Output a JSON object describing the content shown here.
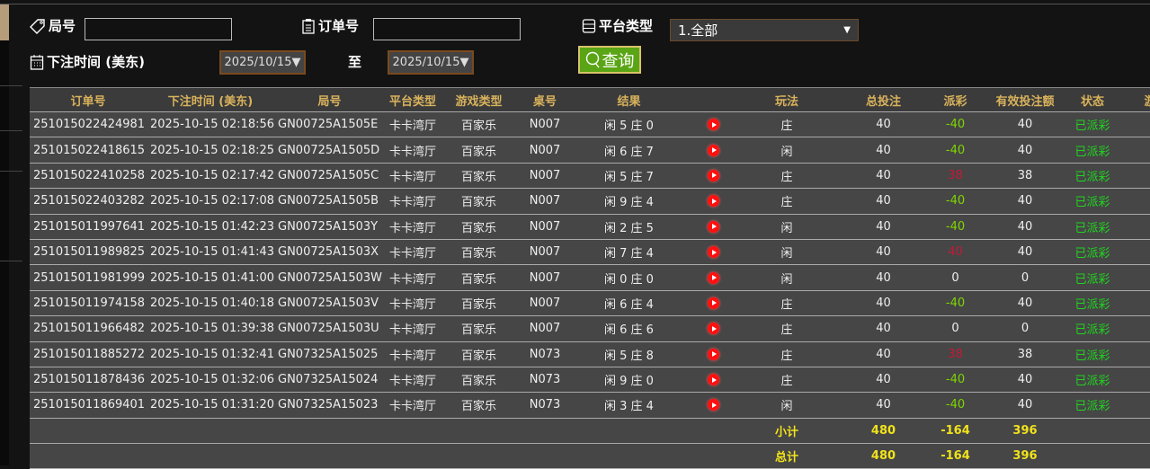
{
  "filters": {
    "round_label": "局号",
    "round_value": "",
    "order_label": "订单号",
    "order_value": "",
    "platform_label": "平台类型",
    "platform_value": "1.全部",
    "time_label": "下注时间 (美东)",
    "date_from": "2025/10/15▼",
    "to_label": "至",
    "date_to": "2025/10/15▼",
    "search_label": "查询"
  },
  "table": {
    "headers": [
      "订单号",
      "下注时间 (美东)",
      "局号",
      "平台类型",
      "游戏类型",
      "桌号",
      "结果",
      "",
      "玩法",
      "总投注",
      "派彩",
      "有效投注额",
      "状态",
      "游"
    ],
    "rows": [
      [
        "251015022424981",
        "2025-10-15 02:18:56",
        "GN00725A1505E",
        "卡卡湾厅",
        "百家乐",
        "N007",
        "闲 5 庄 0",
        "庄",
        "40",
        "-40",
        "40",
        "已派彩"
      ],
      [
        "251015022418615",
        "2025-10-15 02:18:25",
        "GN00725A1505D",
        "卡卡湾厅",
        "百家乐",
        "N007",
        "闲 6 庄 7",
        "闲",
        "40",
        "-40",
        "40",
        "已派彩"
      ],
      [
        "251015022410258",
        "2025-10-15 02:17:42",
        "GN00725A1505C",
        "卡卡湾厅",
        "百家乐",
        "N007",
        "闲 5 庄 7",
        "庄",
        "40",
        "38",
        "38",
        "已派彩"
      ],
      [
        "251015022403282",
        "2025-10-15 02:17:08",
        "GN00725A1505B",
        "卡卡湾厅",
        "百家乐",
        "N007",
        "闲 9 庄 4",
        "庄",
        "40",
        "-40",
        "40",
        "已派彩"
      ],
      [
        "251015011997641",
        "2025-10-15 01:42:23",
        "GN00725A1503Y",
        "卡卡湾厅",
        "百家乐",
        "N007",
        "闲 2 庄 5",
        "闲",
        "40",
        "-40",
        "40",
        "已派彩"
      ],
      [
        "251015011989825",
        "2025-10-15 01:41:43",
        "GN00725A1503X",
        "卡卡湾厅",
        "百家乐",
        "N007",
        "闲 7 庄 4",
        "闲",
        "40",
        "40",
        "40",
        "已派彩"
      ],
      [
        "251015011981999",
        "2025-10-15 01:41:00",
        "GN00725A1503W",
        "卡卡湾厅",
        "百家乐",
        "N007",
        "闲 0 庄 0",
        "闲",
        "40",
        "0",
        "0",
        "已派彩"
      ],
      [
        "251015011974158",
        "2025-10-15 01:40:18",
        "GN00725A1503V",
        "卡卡湾厅",
        "百家乐",
        "N007",
        "闲 6 庄 4",
        "庄",
        "40",
        "-40",
        "40",
        "已派彩"
      ],
      [
        "251015011966482",
        "2025-10-15 01:39:38",
        "GN00725A1503U",
        "卡卡湾厅",
        "百家乐",
        "N007",
        "闲 6 庄 6",
        "庄",
        "40",
        "0",
        "0",
        "已派彩"
      ],
      [
        "251015011885272",
        "2025-10-15 01:32:41",
        "GN07325A15025",
        "卡卡湾厅",
        "百家乐",
        "N073",
        "闲 5 庄 8",
        "庄",
        "40",
        "38",
        "38",
        "已派彩"
      ],
      [
        "251015011878436",
        "2025-10-15 01:32:06",
        "GN07325A15024",
        "卡卡湾厅",
        "百家乐",
        "N073",
        "闲 9 庄 0",
        "庄",
        "40",
        "-40",
        "40",
        "已派彩"
      ],
      [
        "251015011869401",
        "2025-10-15 01:31:20",
        "GN07325A15023",
        "卡卡湾厅",
        "百家乐",
        "N073",
        "闲 3 庄 4",
        "闲",
        "40",
        "-40",
        "40",
        "已派彩"
      ]
    ],
    "subtotal": {
      "label": "小计",
      "total_bet": "480",
      "payout": "-164",
      "valid_bet": "396"
    },
    "total": {
      "label": "总计",
      "total_bet": "480",
      "payout": "-164",
      "valid_bet": "396"
    }
  },
  "colors": {
    "accent_header": "#d9b25c",
    "negative_payout": "#7fd600",
    "positive_payout": "#c21a38",
    "status": "#1fd41f",
    "sum": "#f0e21b",
    "search_button": "#5aa515"
  }
}
